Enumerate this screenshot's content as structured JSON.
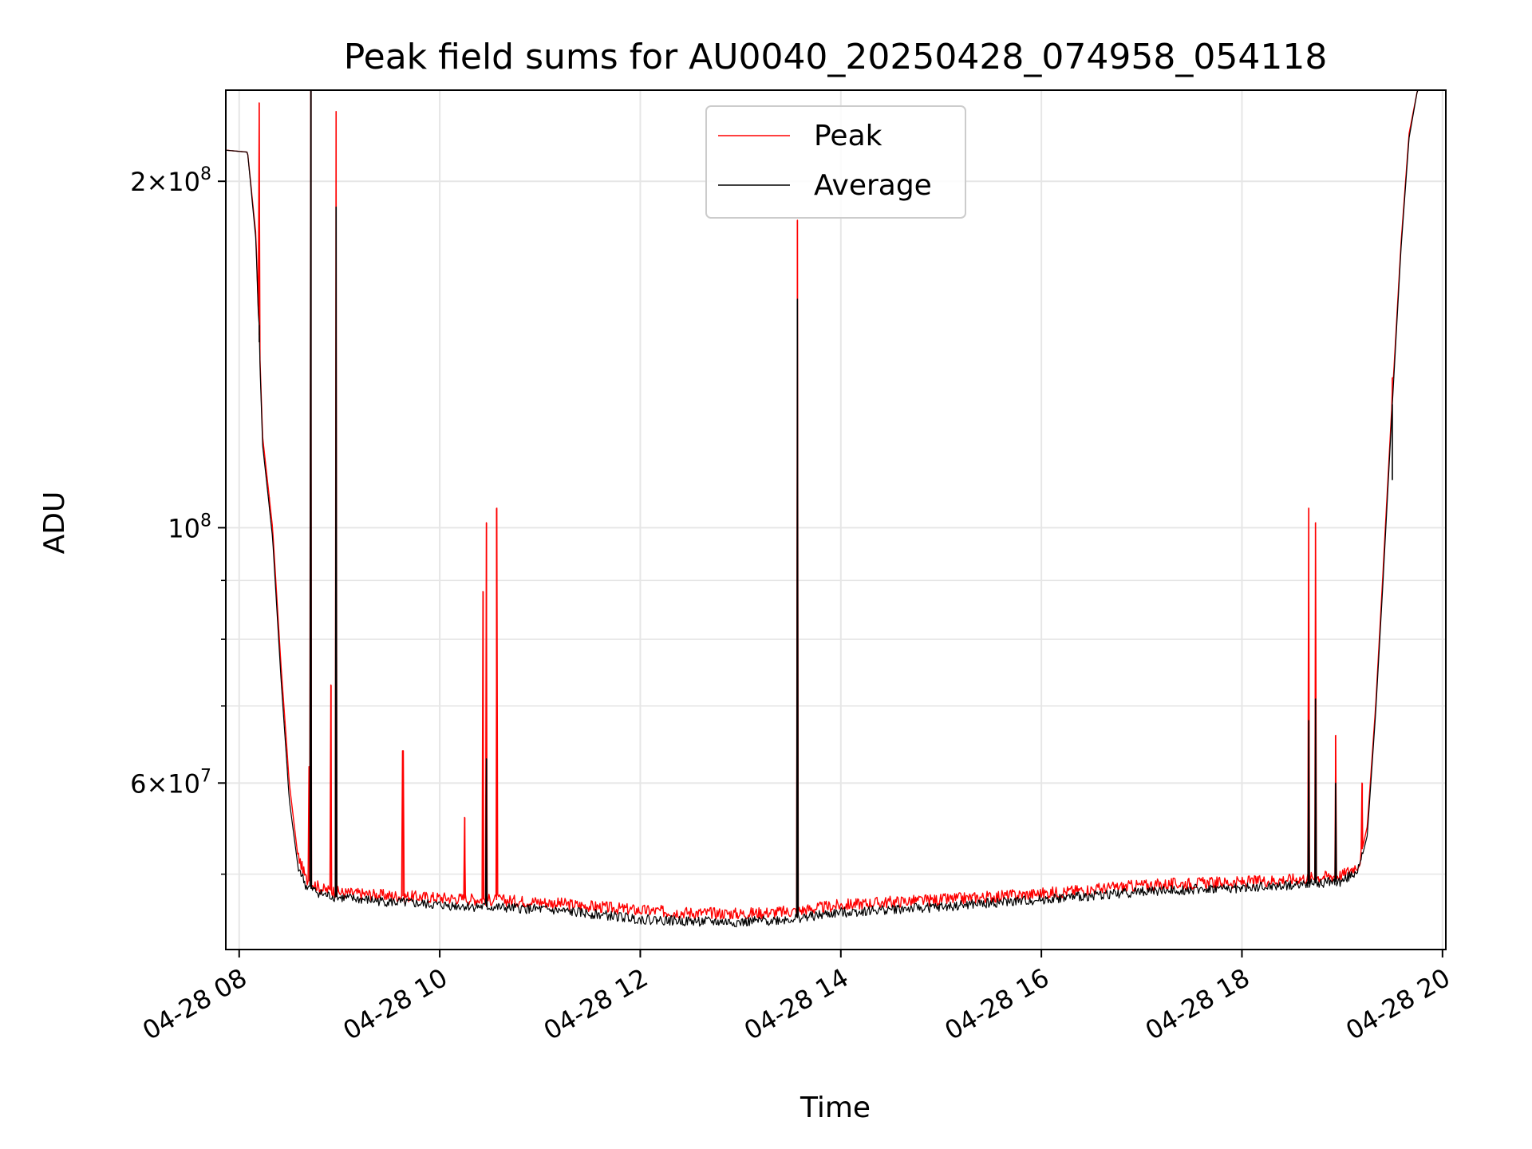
{
  "chart_data": {
    "type": "line",
    "title": "Peak field sums for AU0040_20250428_074958_054118",
    "xlabel": "Time",
    "ylabel": "ADU",
    "x_range": [
      "2025-04-28 07:52",
      "2025-04-28 20:02"
    ],
    "ylim": [
      43000000,
      240000000
    ],
    "yscale": "log",
    "grid": true,
    "legend_position": "upper center",
    "x_ticks": [
      {
        "value": "2025-04-28 08:00",
        "label": "04-28 08"
      },
      {
        "value": "2025-04-28 10:00",
        "label": "04-28 10"
      },
      {
        "value": "2025-04-28 12:00",
        "label": "04-28 12"
      },
      {
        "value": "2025-04-28 14:00",
        "label": "04-28 14"
      },
      {
        "value": "2025-04-28 16:00",
        "label": "04-28 16"
      },
      {
        "value": "2025-04-28 18:00",
        "label": "04-28 18"
      },
      {
        "value": "2025-04-28 20:00",
        "label": "04-28 20"
      }
    ],
    "y_ticks": [
      {
        "value": 60000000,
        "label_mantissa": "6",
        "label_base": "10",
        "label_exp": "7"
      },
      {
        "value": 100000000,
        "label_mantissa": "",
        "label_base": "10",
        "label_exp": "8"
      },
      {
        "value": 200000000,
        "label_mantissa": "2",
        "label_base": "10",
        "label_exp": "8"
      }
    ],
    "y_minor_ticks": [
      50000000,
      70000000,
      80000000,
      90000000
    ],
    "colors": {
      "peak": "#ff0000",
      "average": "#000000",
      "grid": "#e6e6e6"
    },
    "series": [
      {
        "name": "Peak",
        "color": "#ff0000",
        "points": [
          [
            "2025-04-28 07:50",
            213000000
          ],
          [
            "2025-04-28 08:05",
            212000000
          ],
          [
            "2025-04-28 08:10",
            180000000
          ],
          [
            "2025-04-28 08:14",
            120000000
          ],
          [
            "2025-04-28 08:20",
            100000000
          ],
          [
            "2025-04-28 08:25",
            76000000
          ],
          [
            "2025-04-28 08:30",
            60000000
          ],
          [
            "2025-04-28 08:35",
            52000000
          ],
          [
            "2025-04-28 08:40",
            49500000
          ],
          [
            "2025-04-28 08:50",
            48500000
          ],
          [
            "2025-04-28 09:00",
            48200000
          ],
          [
            "2025-04-28 09:30",
            47900000
          ],
          [
            "2025-04-28 10:00",
            47700000
          ],
          [
            "2025-04-28 10:30",
            47500000
          ],
          [
            "2025-04-28 11:00",
            47300000
          ],
          [
            "2025-04-28 11:30",
            46900000
          ],
          [
            "2025-04-28 12:00",
            46500000
          ],
          [
            "2025-04-28 12:30",
            46300000
          ],
          [
            "2025-04-28 13:00",
            46200000
          ],
          [
            "2025-04-28 13:30",
            46400000
          ],
          [
            "2025-04-28 14:00",
            47000000
          ],
          [
            "2025-04-28 14:30",
            47300000
          ],
          [
            "2025-04-28 15:00",
            47500000
          ],
          [
            "2025-04-28 15:30",
            47800000
          ],
          [
            "2025-04-28 16:00",
            48100000
          ],
          [
            "2025-04-28 16:30",
            48500000
          ],
          [
            "2025-04-28 17:00",
            48900000
          ],
          [
            "2025-04-28 17:30",
            49100000
          ],
          [
            "2025-04-28 18:00",
            49200000
          ],
          [
            "2025-04-28 18:30",
            49500000
          ],
          [
            "2025-04-28 19:00",
            49900000
          ],
          [
            "2025-04-28 19:10",
            51000000
          ],
          [
            "2025-04-28 19:15",
            55000000
          ],
          [
            "2025-04-28 19:20",
            70000000
          ],
          [
            "2025-04-28 19:25",
            95000000
          ],
          [
            "2025-04-28 19:30",
            130000000
          ],
          [
            "2025-04-28 19:35",
            175000000
          ],
          [
            "2025-04-28 19:40",
            220000000
          ],
          [
            "2025-04-28 19:45",
            240000000
          ],
          [
            "2025-04-28 20:02",
            240000000
          ]
        ],
        "spikes": [
          [
            "2025-04-28 08:12",
            234000000
          ],
          [
            "2025-04-28 08:18",
            105000000
          ],
          [
            "2025-04-28 08:42",
            62000000
          ],
          [
            "2025-04-28 08:43",
            240000000
          ],
          [
            "2025-04-28 08:55",
            73000000
          ],
          [
            "2025-04-28 08:58",
            230000000
          ],
          [
            "2025-04-28 09:38",
            64000000
          ],
          [
            "2025-04-28 10:15",
            56000000
          ],
          [
            "2025-04-28 10:26",
            88000000
          ],
          [
            "2025-04-28 10:28",
            101000000
          ],
          [
            "2025-04-28 10:34",
            104000000
          ],
          [
            "2025-04-28 13:34",
            185000000
          ],
          [
            "2025-04-28 18:40",
            104000000
          ],
          [
            "2025-04-28 18:44",
            101000000
          ],
          [
            "2025-04-28 18:56",
            66000000
          ],
          [
            "2025-04-28 19:12",
            60000000
          ],
          [
            "2025-04-28 19:30",
            135000000
          ]
        ]
      },
      {
        "name": "Average",
        "color": "#000000",
        "points": [
          [
            "2025-04-28 07:50",
            213000000
          ],
          [
            "2025-04-28 08:05",
            212000000
          ],
          [
            "2025-04-28 08:10",
            178000000
          ],
          [
            "2025-04-28 08:14",
            118000000
          ],
          [
            "2025-04-28 08:20",
            98000000
          ],
          [
            "2025-04-28 08:25",
            74000000
          ],
          [
            "2025-04-28 08:30",
            58000000
          ],
          [
            "2025-04-28 08:35",
            51000000
          ],
          [
            "2025-04-28 08:40",
            48800000
          ],
          [
            "2025-04-28 08:50",
            48000000
          ],
          [
            "2025-04-28 09:00",
            47700000
          ],
          [
            "2025-04-28 09:30",
            47300000
          ],
          [
            "2025-04-28 10:00",
            47000000
          ],
          [
            "2025-04-28 10:30",
            46800000
          ],
          [
            "2025-04-28 11:00",
            46600000
          ],
          [
            "2025-04-28 11:30",
            46200000
          ],
          [
            "2025-04-28 12:00",
            45700000
          ],
          [
            "2025-04-28 12:30",
            45500000
          ],
          [
            "2025-04-28 13:00",
            45400000
          ],
          [
            "2025-04-28 13:30",
            45700000
          ],
          [
            "2025-04-28 14:00",
            46300000
          ],
          [
            "2025-04-28 14:30",
            46600000
          ],
          [
            "2025-04-28 15:00",
            46800000
          ],
          [
            "2025-04-28 15:30",
            47200000
          ],
          [
            "2025-04-28 16:00",
            47500000
          ],
          [
            "2025-04-28 16:30",
            47900000
          ],
          [
            "2025-04-28 17:00",
            48300000
          ],
          [
            "2025-04-28 17:30",
            48500000
          ],
          [
            "2025-04-28 18:00",
            48600000
          ],
          [
            "2025-04-28 18:30",
            48900000
          ],
          [
            "2025-04-28 19:00",
            49300000
          ],
          [
            "2025-04-28 19:10",
            50500000
          ],
          [
            "2025-04-28 19:15",
            54000000
          ],
          [
            "2025-04-28 19:20",
            69000000
          ],
          [
            "2025-04-28 19:25",
            93000000
          ],
          [
            "2025-04-28 19:30",
            128000000
          ],
          [
            "2025-04-28 19:35",
            173000000
          ],
          [
            "2025-04-28 19:40",
            218000000
          ],
          [
            "2025-04-28 19:45",
            240000000
          ],
          [
            "2025-04-28 20:02",
            240000000
          ]
        ],
        "spikes": [
          [
            "2025-04-28 08:12",
            150000000
          ],
          [
            "2025-04-28 08:43",
            240000000
          ],
          [
            "2025-04-28 08:58",
            190000000
          ],
          [
            "2025-04-28 10:28",
            63000000
          ],
          [
            "2025-04-28 13:34",
            158000000
          ],
          [
            "2025-04-28 18:40",
            68000000
          ],
          [
            "2025-04-28 18:44",
            71000000
          ],
          [
            "2025-04-28 18:56",
            60000000
          ],
          [
            "2025-04-28 19:30",
            110000000
          ]
        ]
      }
    ]
  }
}
